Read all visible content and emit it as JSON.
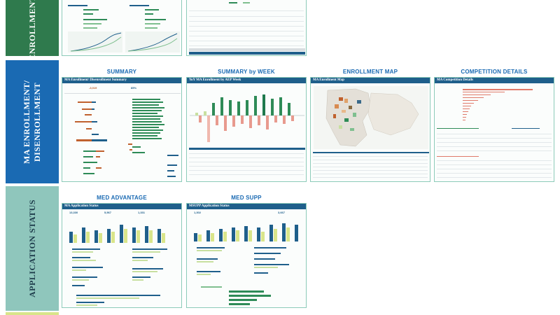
{
  "sections": {
    "enrollment": "ENROLLMENT",
    "ma_enrollment": "MA ENROLLMENT/ DISENROLLMENT",
    "application_status": "APPLICATION STATUS"
  },
  "tiles": {
    "summary": {
      "label": "SUMMARY",
      "header": "MA Enrollment/ Disenrollment Summary"
    },
    "summary_by_week": {
      "label": "SUMMARY by WEEK",
      "header": "YoY MA Enrollment by AEP Week"
    },
    "enrollment_map": {
      "label": "ENROLLMENT MAP",
      "header": "MA Enrollment Map"
    },
    "competition": {
      "label": "COMPETITION DETAILS",
      "header": "MA Competition Details"
    },
    "med_advantage": {
      "label": "MED ADVANTAGE",
      "header": "MA Application Status",
      "kpis": [
        "13,330",
        "5,567",
        "1,331"
      ]
    },
    "med_supp": {
      "label": "MED SUPP",
      "header": "MSUPP Application Status",
      "kpis": [
        "1,302",
        "3,667"
      ]
    }
  },
  "summary_kpis": [
    "-3,019",
    "85%"
  ],
  "colors": {
    "enrollment": "#2f7a4d",
    "ma": "#1a6ab3",
    "application": "#8fc6bc",
    "next": "#d9e58a",
    "header": "#1f5f8b"
  }
}
